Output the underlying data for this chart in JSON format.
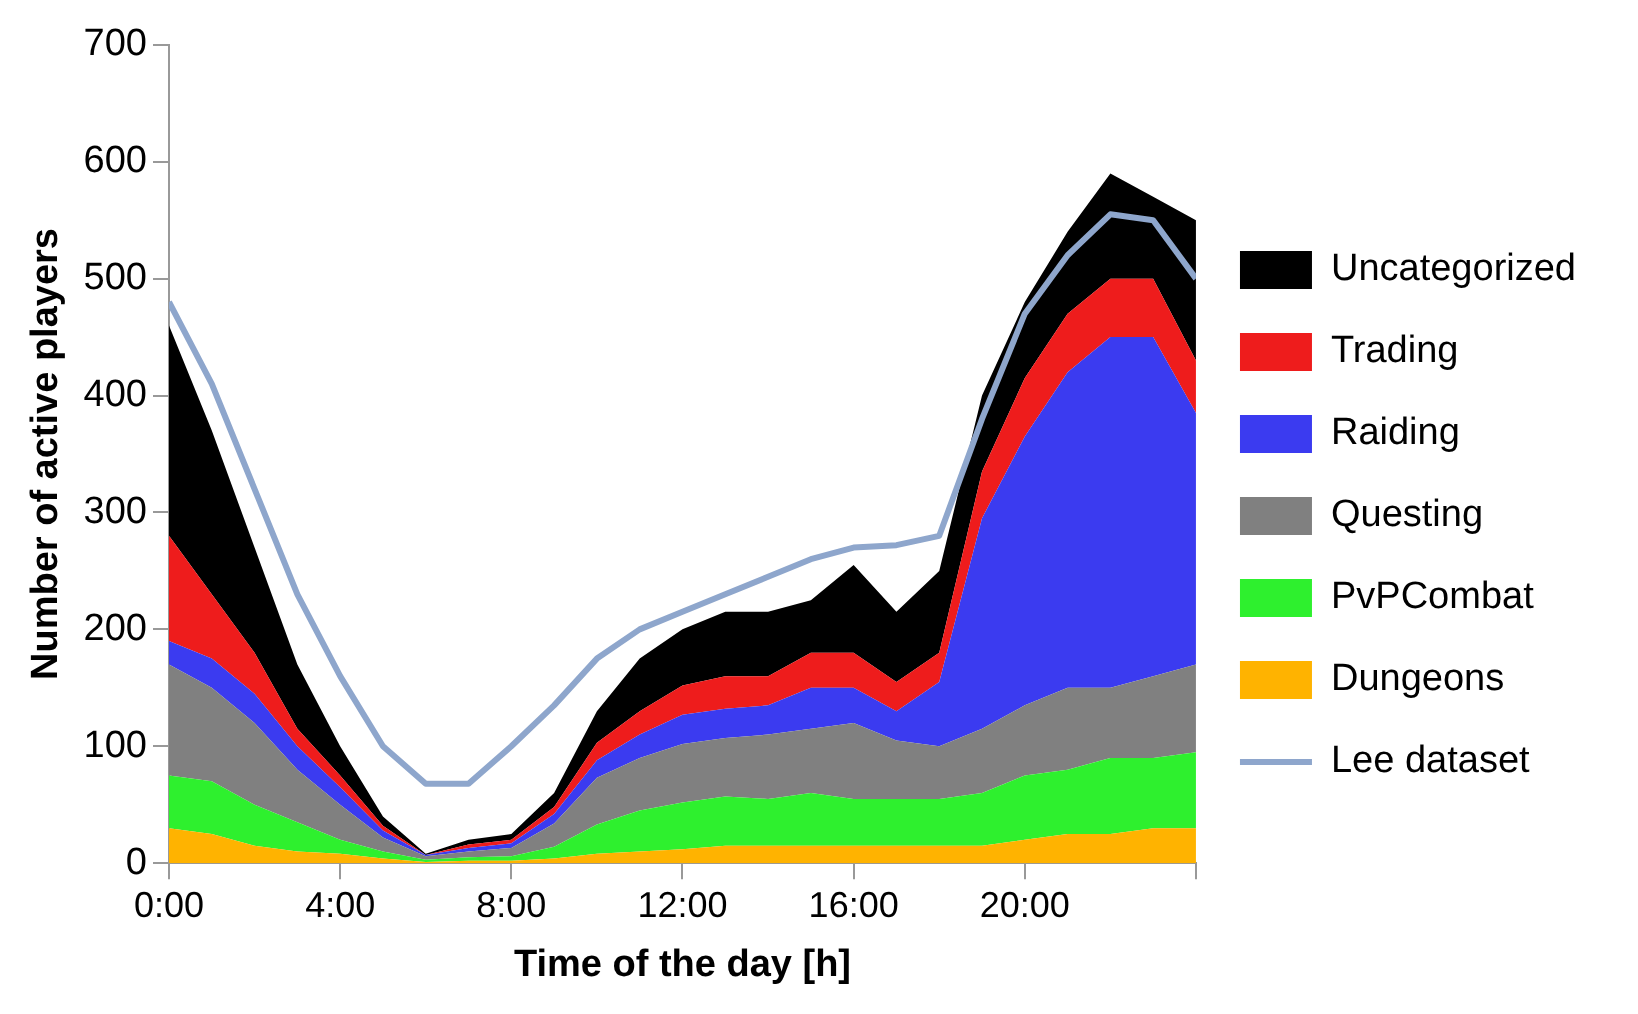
{
  "chart_data": {
    "type": "area",
    "stacked": true,
    "xlabel": "Time of the day [h]",
    "ylabel": "Number of active players",
    "x": [
      0,
      1,
      2,
      3,
      4,
      5,
      6,
      7,
      8,
      9,
      10,
      11,
      12,
      13,
      14,
      15,
      16,
      17,
      18,
      19,
      20,
      21,
      22,
      23,
      24
    ],
    "xlim": [
      0,
      24
    ],
    "xticks": [
      {
        "value": 0,
        "label": "0:00"
      },
      {
        "value": 4,
        "label": "4:00"
      },
      {
        "value": 8,
        "label": "8:00"
      },
      {
        "value": 12,
        "label": "12:00"
      },
      {
        "value": 16,
        "label": "16:00"
      },
      {
        "value": 20,
        "label": "20:00"
      },
      {
        "value": 24,
        "label": null
      }
    ],
    "ylim": [
      0,
      700
    ],
    "yticks": [
      0,
      100,
      200,
      300,
      400,
      500,
      600,
      700
    ],
    "grid": false,
    "legend": "right",
    "marker": "none",
    "series": [
      {
        "name": "Dungeons",
        "color": "#ffb300",
        "values": [
          30,
          25,
          15,
          10,
          8,
          4,
          1,
          2,
          2,
          4,
          8,
          10,
          12,
          15,
          15,
          15,
          15,
          15,
          15,
          15,
          20,
          25,
          25,
          30,
          30
        ]
      },
      {
        "name": "PvPCombat",
        "color": "#2ef02e",
        "values": [
          45,
          45,
          35,
          25,
          12,
          6,
          2,
          3,
          4,
          10,
          25,
          35,
          40,
          42,
          40,
          45,
          40,
          40,
          40,
          45,
          55,
          55,
          65,
          60,
          65
        ]
      },
      {
        "name": "Questing",
        "color": "#808080",
        "values": [
          95,
          80,
          70,
          45,
          30,
          12,
          3,
          5,
          7,
          20,
          40,
          45,
          50,
          50,
          55,
          55,
          65,
          50,
          45,
          55,
          60,
          70,
          60,
          70,
          75
        ]
      },
      {
        "name": "Raiding",
        "color": "#3b3bf0",
        "values": [
          20,
          25,
          25,
          20,
          15,
          6,
          1,
          3,
          4,
          8,
          15,
          20,
          25,
          25,
          25,
          35,
          30,
          25,
          55,
          180,
          230,
          270,
          300,
          290,
          215
        ]
      },
      {
        "name": "Trading",
        "color": "#ee1c1c",
        "values": [
          90,
          55,
          35,
          15,
          10,
          4,
          0,
          3,
          3,
          6,
          15,
          20,
          25,
          28,
          25,
          30,
          30,
          25,
          25,
          40,
          50,
          50,
          50,
          50,
          45
        ]
      },
      {
        "name": "Uncategorized",
        "color": "#000000",
        "values": [
          180,
          140,
          90,
          55,
          25,
          8,
          1,
          4,
          5,
          12,
          27,
          45,
          48,
          55,
          55,
          45,
          75,
          60,
          70,
          65,
          65,
          70,
          90,
          70,
          120
        ]
      },
      {
        "name": "Lee dataset",
        "type": "line",
        "color": "#8ea6cc",
        "values": [
          480,
          410,
          320,
          230,
          160,
          100,
          68,
          68,
          100,
          135,
          175,
          200,
          215,
          230,
          245,
          260,
          270,
          272,
          280,
          380,
          470,
          520,
          555,
          550,
          500
        ]
      }
    ]
  }
}
